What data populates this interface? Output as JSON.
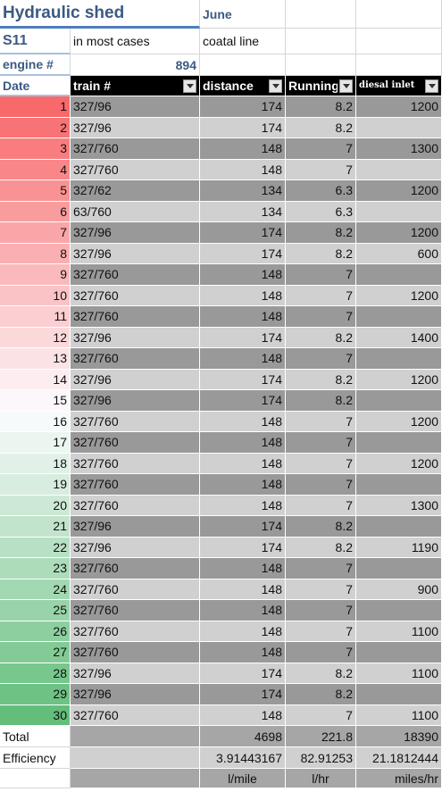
{
  "sheet": {
    "title": "Hydraulic shed",
    "month": "June",
    "code": "S11",
    "note": "in most cases",
    "line": "coatal line",
    "engine_label": "engine #",
    "engine_value": "894"
  },
  "headers": {
    "date": "Date",
    "train": "train #",
    "distance": "distance",
    "running": "Running",
    "diesal": "diesal inlet"
  },
  "rows": [
    {
      "day": "1",
      "train": "327/96",
      "distance": "174",
      "running": "8.2",
      "diesal": "1200"
    },
    {
      "day": "2",
      "train": "327/96",
      "distance": "174",
      "running": "8.2",
      "diesal": ""
    },
    {
      "day": "3",
      "train": "327/760",
      "distance": "148",
      "running": "7",
      "diesal": "1300"
    },
    {
      "day": "4",
      "train": "327/760",
      "distance": "148",
      "running": "7",
      "diesal": ""
    },
    {
      "day": "5",
      "train": "327/62",
      "distance": "134",
      "running": "6.3",
      "diesal": "1200"
    },
    {
      "day": "6",
      "train": "63/760",
      "distance": "134",
      "running": "6.3",
      "diesal": ""
    },
    {
      "day": "7",
      "train": "327/96",
      "distance": "174",
      "running": "8.2",
      "diesal": "1200"
    },
    {
      "day": "8",
      "train": "327/96",
      "distance": "174",
      "running": "8.2",
      "diesal": "600"
    },
    {
      "day": "9",
      "train": "327/760",
      "distance": "148",
      "running": "7",
      "diesal": ""
    },
    {
      "day": "10",
      "train": "327/760",
      "distance": "148",
      "running": "7",
      "diesal": "1200"
    },
    {
      "day": "11",
      "train": "327/760",
      "distance": "148",
      "running": "7",
      "diesal": ""
    },
    {
      "day": "12",
      "train": "327/96",
      "distance": "174",
      "running": "8.2",
      "diesal": "1400"
    },
    {
      "day": "13",
      "train": "327/760",
      "distance": "148",
      "running": "7",
      "diesal": ""
    },
    {
      "day": "14",
      "train": "327/96",
      "distance": "174",
      "running": "8.2",
      "diesal": "1200"
    },
    {
      "day": "15",
      "train": "327/96",
      "distance": "174",
      "running": "8.2",
      "diesal": ""
    },
    {
      "day": "16",
      "train": "327/760",
      "distance": "148",
      "running": "7",
      "diesal": "1200"
    },
    {
      "day": "17",
      "train": "327/760",
      "distance": "148",
      "running": "7",
      "diesal": ""
    },
    {
      "day": "18",
      "train": "327/760",
      "distance": "148",
      "running": "7",
      "diesal": "1200"
    },
    {
      "day": "19",
      "train": "327/760",
      "distance": "148",
      "running": "7",
      "diesal": ""
    },
    {
      "day": "20",
      "train": "327/760",
      "distance": "148",
      "running": "7",
      "diesal": "1300"
    },
    {
      "day": "21",
      "train": "327/96",
      "distance": "174",
      "running": "8.2",
      "diesal": ""
    },
    {
      "day": "22",
      "train": "327/96",
      "distance": "174",
      "running": "8.2",
      "diesal": "1190"
    },
    {
      "day": "23",
      "train": "327/760",
      "distance": "148",
      "running": "7",
      "diesal": ""
    },
    {
      "day": "24",
      "train": "327/760",
      "distance": "148",
      "running": "7",
      "diesal": "900"
    },
    {
      "day": "25",
      "train": "327/760",
      "distance": "148",
      "running": "7",
      "diesal": ""
    },
    {
      "day": "26",
      "train": "327/760",
      "distance": "148",
      "running": "7",
      "diesal": "1100"
    },
    {
      "day": "27",
      "train": "327/760",
      "distance": "148",
      "running": "7",
      "diesal": ""
    },
    {
      "day": "28",
      "train": "327/96",
      "distance": "174",
      "running": "8.2",
      "diesal": "1100"
    },
    {
      "day": "29",
      "train": "327/96",
      "distance": "174",
      "running": "8.2",
      "diesal": ""
    },
    {
      "day": "30",
      "train": "327/760",
      "distance": "148",
      "running": "7",
      "diesal": "1100"
    }
  ],
  "totals": {
    "label": "Total",
    "distance": "4698",
    "running": "221.8",
    "diesal": "18390"
  },
  "efficiency": {
    "label": "Efficiency",
    "distance": "3.91443167",
    "running": "82.91253",
    "diesal": "21.1812444"
  },
  "units": {
    "distance": "l/mile",
    "running": "l/hr",
    "diesal": "miles/hr"
  },
  "colors": {
    "scale_start": "#f8696b",
    "scale_mid": "#fcfcff",
    "scale_end": "#63be7b"
  }
}
